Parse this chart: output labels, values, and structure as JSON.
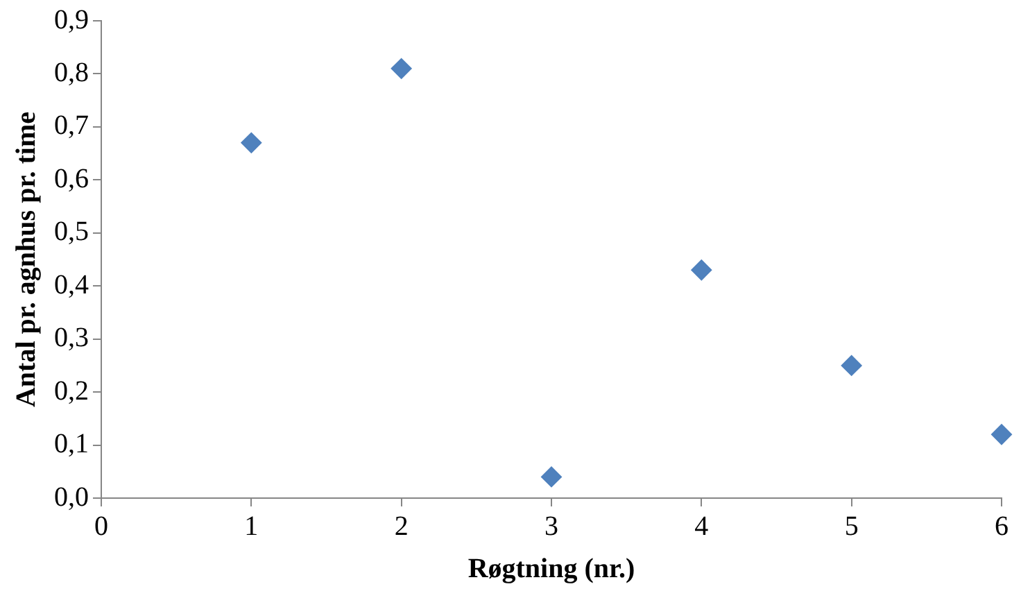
{
  "chart_data": {
    "type": "scatter",
    "xlabel": "Røgtning (nr.)",
    "ylabel": "Antal pr. agnhus pr. time",
    "x": [
      1,
      2,
      3,
      4,
      5,
      6
    ],
    "series": [
      {
        "color": "#4f81bd",
        "values": [
          0.67,
          0.81,
          0.04,
          0.43,
          0.25,
          0.12
        ]
      }
    ],
    "xlim": [
      0,
      6
    ],
    "xticks": [
      0,
      1,
      2,
      3,
      4,
      5,
      6
    ],
    "ylim": [
      0,
      0.9
    ],
    "yticks": [
      {
        "value": 0,
        "label": "0,0"
      },
      {
        "value": 0.1,
        "label": "0,1"
      },
      {
        "value": 0.2,
        "label": "0,2"
      },
      {
        "value": 0.3,
        "label": "0,3"
      },
      {
        "value": 0.4,
        "label": "0,4"
      },
      {
        "value": 0.5,
        "label": "0,5"
      },
      {
        "value": 0.6,
        "label": "0,6"
      },
      {
        "value": 0.7,
        "label": "0,7"
      },
      {
        "value": 0.8,
        "label": "0,8"
      },
      {
        "value": 0.9,
        "label": "0,9"
      }
    ],
    "marker": "diamond"
  }
}
